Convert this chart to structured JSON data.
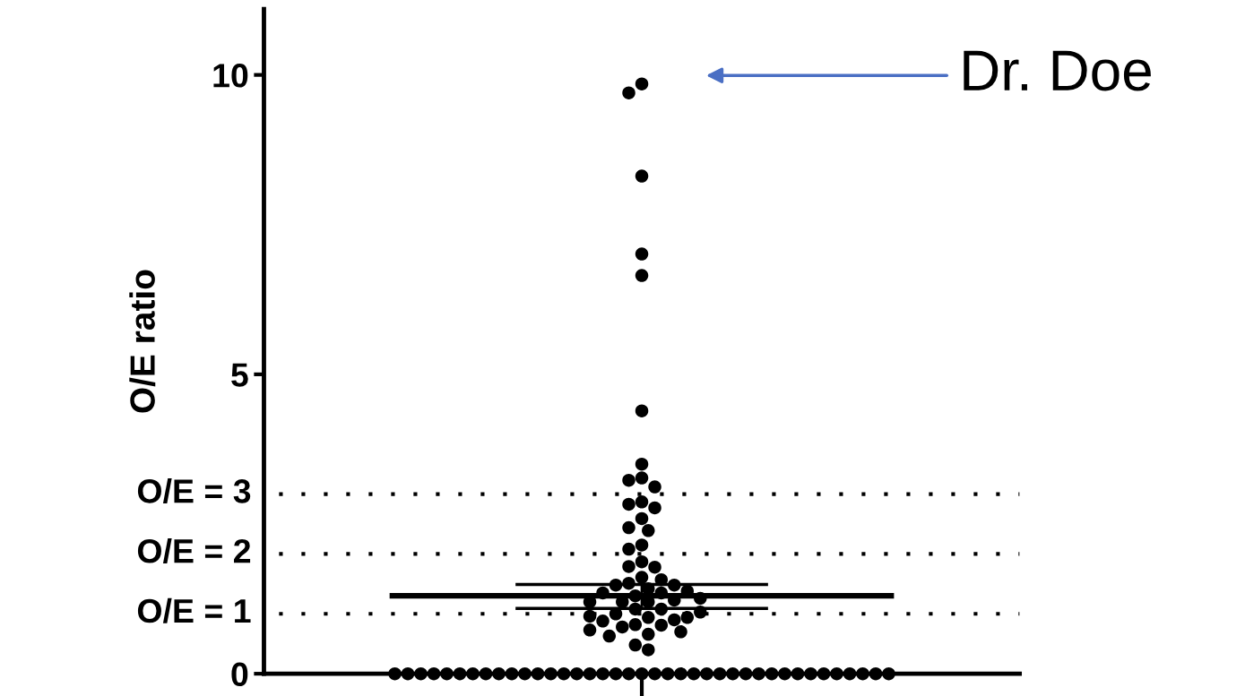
{
  "chart_data": {
    "type": "scatter",
    "ylabel": "O/E ratio",
    "categories": [
      null
    ],
    "ylim": [
      0,
      11.1
    ],
    "yticks": [
      0,
      5,
      10
    ],
    "ref_lines": [
      {
        "axis": "y",
        "value": 1,
        "label": "O/E = 1",
        "line_style": "dotted",
        "color": "#000000"
      },
      {
        "axis": "y",
        "value": 2,
        "label": "O/E = 2",
        "line_style": "dotted",
        "color": "#000000"
      },
      {
        "axis": "y",
        "value": 3,
        "label": "O/E = 3",
        "line_style": "dotted",
        "color": "#000000"
      },
      {
        "axis": "y",
        "value": 1.49,
        "line_style": "solid",
        "color": "#000000"
      },
      {
        "axis": "y",
        "value": 1.3,
        "line_style": "solid",
        "color": "#000000"
      },
      {
        "axis": "y",
        "value": 1.09,
        "line_style": "solid",
        "color": "#000000"
      }
    ],
    "annotations": [
      "Dr. Doe"
    ],
    "series": [
      {
        "color": "#000000",
        "marker": "circle",
        "x": [
          null,
          null,
          null,
          null,
          null,
          null,
          null,
          null,
          null,
          null,
          null,
          null,
          null,
          null,
          null,
          null,
          null,
          null,
          null,
          null,
          null,
          null,
          null,
          null,
          null,
          null,
          null,
          null,
          null,
          null,
          null,
          null,
          null,
          null,
          null,
          null,
          null,
          null,
          null,
          null,
          null,
          null,
          null,
          null,
          null,
          null,
          null,
          null,
          null,
          null,
          null,
          null,
          null,
          null,
          null,
          null,
          null,
          null,
          null,
          null,
          null,
          null,
          null,
          null,
          null,
          null,
          null,
          null,
          null,
          null,
          null,
          null,
          null,
          null,
          null,
          null,
          null,
          null,
          null,
          null,
          null,
          null,
          null,
          null,
          null,
          null,
          null,
          null,
          null,
          null,
          null,
          null,
          null
        ],
        "values": [
          0,
          0,
          0,
          0,
          0,
          0,
          0,
          0,
          0,
          0,
          0,
          0,
          0,
          0,
          0,
          0,
          0,
          0,
          0,
          0,
          0,
          0,
          0,
          0,
          0,
          0,
          0,
          0,
          0,
          0,
          0,
          0,
          0,
          0,
          0,
          0,
          0,
          0,
          0,
          9.85,
          9.7,
          8.31,
          7.01,
          6.65,
          4.39,
          3.5,
          3.27,
          3.23,
          3.12,
          2.87,
          2.83,
          2.77,
          2.59,
          2.44,
          2.39,
          2.15,
          2.08,
          1.87,
          1.79,
          1.78,
          1.61,
          1.51,
          1.57,
          1.48,
          1.48,
          1.42,
          1.35,
          1.35,
          1.38,
          1.3,
          1.2,
          1.2,
          1.23,
          1.2,
          1.26,
          1.08,
          1.08,
          1.0,
          0.94,
          0.9,
          0.82,
          0.78,
          0.81,
          0.88,
          0.94,
          0.96,
          1.03,
          0.73,
          0.66,
          0.63,
          0.7,
          0.48,
          0.4
        ]
      }
    ]
  }
}
